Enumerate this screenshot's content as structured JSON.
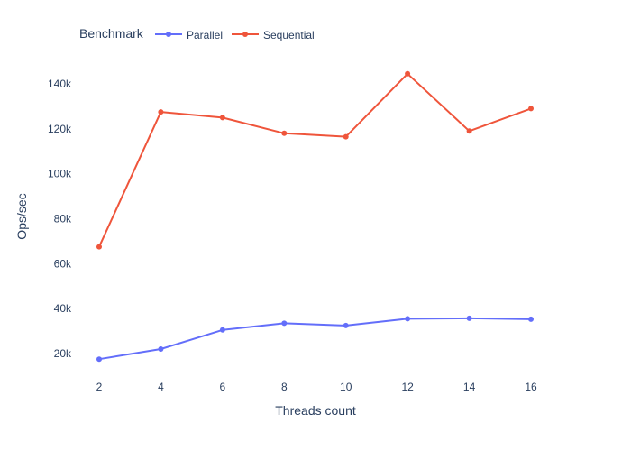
{
  "chart_data": {
    "type": "line",
    "xlabel": "Threads count",
    "ylabel": "Ops/sec",
    "x": [
      2,
      4,
      6,
      8,
      10,
      12,
      14,
      16
    ],
    "x_ticks": [
      "2",
      "4",
      "6",
      "8",
      "10",
      "12",
      "14",
      "16"
    ],
    "y_ticks": [
      "20k",
      "40k",
      "60k",
      "80k",
      "100k",
      "120k",
      "140k"
    ],
    "y_tick_values": [
      20000,
      40000,
      60000,
      80000,
      100000,
      120000,
      140000
    ],
    "xlim": [
      2,
      16
    ],
    "ylim": [
      20000,
      140000
    ],
    "grid": false,
    "legend": {
      "title": "Benchmark",
      "placement": "top-left"
    },
    "series": [
      {
        "name": "Parallel",
        "color": "#636efa",
        "values": [
          17500,
          22000,
          30500,
          33500,
          32500,
          35500,
          35700,
          35300
        ]
      },
      {
        "name": "Sequential",
        "color": "#ef553b",
        "values": [
          67500,
          127500,
          125000,
          118000,
          116500,
          144500,
          119000,
          129000
        ]
      }
    ]
  }
}
